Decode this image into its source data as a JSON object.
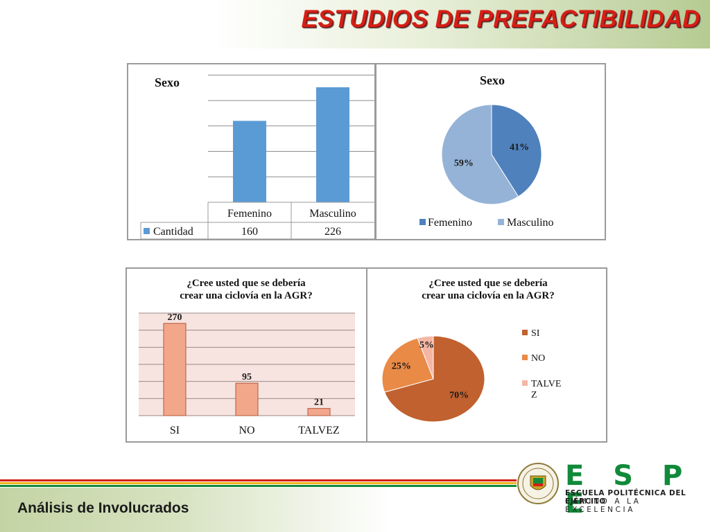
{
  "slide": {
    "title": "ESTUDIOS DE PREFACTIBILIDAD",
    "footer": "Análisis de Involucrados"
  },
  "logo": {
    "letters": "E S P E",
    "line1": "ESCUELA POLITÉCNICA DEL EJÉRCITO",
    "line2": "CAMINO A LA EXCELENCIA",
    "colors": {
      "brand_green": "#118a3a",
      "accent_red": "#d51f16"
    }
  },
  "chart_data": [
    {
      "type": "bar",
      "title": "Sexo",
      "categories": [
        "Femenino",
        "Masculino"
      ],
      "series": [
        {
          "name": "Cantidad",
          "values": [
            160,
            226
          ],
          "color": "#5b9bd5"
        }
      ],
      "data_table": true,
      "ylim": [
        0,
        260
      ],
      "grid": true
    },
    {
      "type": "pie",
      "title": "Sexo",
      "labels": [
        "Femenino",
        "Masculino"
      ],
      "values": [
        41,
        59
      ],
      "value_labels": [
        "41%",
        "59%"
      ],
      "colors": [
        "#4f81bd",
        "#95b3d7"
      ],
      "legend": "bottom"
    },
    {
      "type": "bar",
      "title_lines": [
        "¿Cree usted que se debería",
        "crear una ciclovía en la AGR?"
      ],
      "categories": [
        "SI",
        "NO",
        "TALVEZ"
      ],
      "values": [
        270,
        95,
        21
      ],
      "color": "#f2a68a",
      "ylim": [
        0,
        300
      ],
      "grid": true
    },
    {
      "type": "pie",
      "title_lines": [
        "¿Cree usted que se debería",
        "crear una ciclovía en la AGR?"
      ],
      "labels": [
        "SI",
        "NO",
        "TALVEZ"
      ],
      "legend_lines": [
        [
          "SI"
        ],
        [
          "NO"
        ],
        [
          "TALVE",
          "Z"
        ]
      ],
      "values": [
        70,
        25,
        5
      ],
      "value_labels": [
        "70%",
        "25%",
        "5%"
      ],
      "colors": [
        "#c0612f",
        "#e98a47",
        "#f5b6a4"
      ],
      "legend": "right"
    }
  ]
}
